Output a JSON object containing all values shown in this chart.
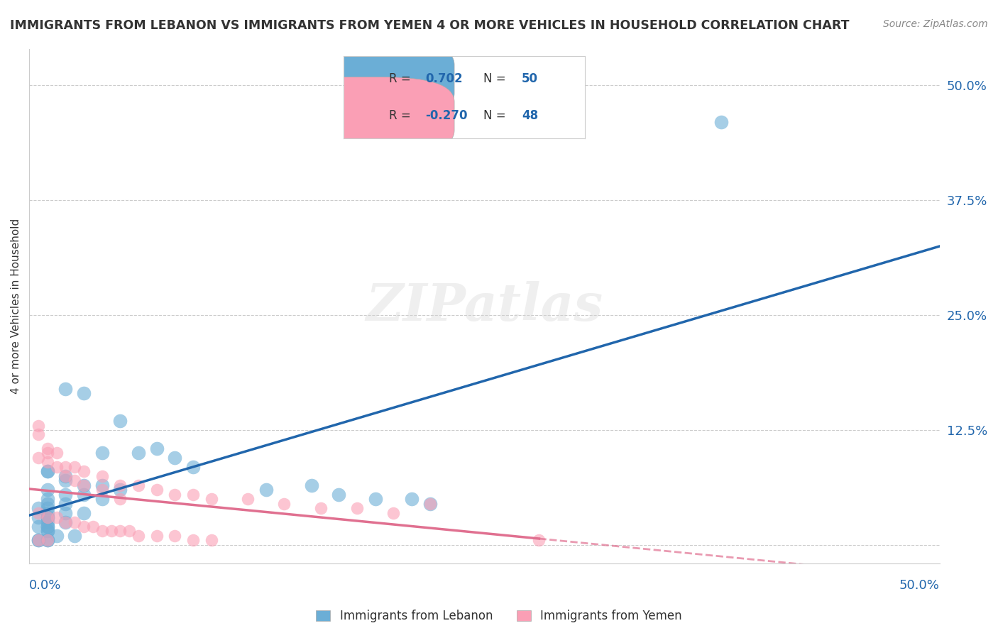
{
  "title": "IMMIGRANTS FROM LEBANON VS IMMIGRANTS FROM YEMEN 4 OR MORE VEHICLES IN HOUSEHOLD CORRELATION CHART",
  "source": "Source: ZipAtlas.com",
  "ylabel": "4 or more Vehicles in Household",
  "y_ticks": [
    0.0,
    0.125,
    0.25,
    0.375,
    0.5
  ],
  "y_tick_labels": [
    "",
    "12.5%",
    "25.0%",
    "37.5%",
    "50.0%"
  ],
  "xlim": [
    0.0,
    0.5
  ],
  "ylim": [
    -0.02,
    0.54
  ],
  "legend_blue_R": "0.702",
  "legend_blue_N": "50",
  "legend_pink_R": "-0.270",
  "legend_pink_N": "48",
  "blue_color": "#6baed6",
  "pink_color": "#fa9fb5",
  "blue_line_color": "#2166ac",
  "pink_line_color": "#e07090",
  "watermark": "ZIPatlas",
  "blue_scatter_x": [
    0.02,
    0.03,
    0.04,
    0.05,
    0.06,
    0.07,
    0.08,
    0.09,
    0.01,
    0.01,
    0.02,
    0.02,
    0.03,
    0.04,
    0.05,
    0.01,
    0.02,
    0.03,
    0.04,
    0.01,
    0.02,
    0.01,
    0.01,
    0.005,
    0.01,
    0.02,
    0.03,
    0.01,
    0.005,
    0.01,
    0.02,
    0.01,
    0.01,
    0.005,
    0.01,
    0.155,
    0.13,
    0.17,
    0.19,
    0.21,
    0.22,
    0.01,
    0.01,
    0.015,
    0.025,
    0.005,
    0.01,
    0.005,
    0.38,
    0.01
  ],
  "blue_scatter_y": [
    0.17,
    0.165,
    0.1,
    0.135,
    0.1,
    0.105,
    0.095,
    0.085,
    0.08,
    0.08,
    0.075,
    0.07,
    0.065,
    0.065,
    0.06,
    0.06,
    0.055,
    0.055,
    0.05,
    0.05,
    0.045,
    0.045,
    0.04,
    0.04,
    0.035,
    0.035,
    0.035,
    0.03,
    0.03,
    0.03,
    0.025,
    0.025,
    0.02,
    0.02,
    0.02,
    0.065,
    0.06,
    0.055,
    0.05,
    0.05,
    0.045,
    0.015,
    0.015,
    0.01,
    0.01,
    0.005,
    0.005,
    0.005,
    0.46,
    0.005
  ],
  "pink_scatter_x": [
    0.005,
    0.01,
    0.015,
    0.02,
    0.025,
    0.03,
    0.04,
    0.05,
    0.06,
    0.07,
    0.08,
    0.09,
    0.1,
    0.12,
    0.14,
    0.16,
    0.18,
    0.2,
    0.22,
    0.005,
    0.01,
    0.015,
    0.02,
    0.025,
    0.03,
    0.035,
    0.04,
    0.045,
    0.05,
    0.055,
    0.06,
    0.07,
    0.08,
    0.09,
    0.1,
    0.005,
    0.01,
    0.005,
    0.01,
    0.015,
    0.02,
    0.025,
    0.03,
    0.04,
    0.05,
    0.005,
    0.01,
    0.28
  ],
  "pink_scatter_y": [
    0.13,
    0.105,
    0.1,
    0.085,
    0.085,
    0.08,
    0.075,
    0.065,
    0.065,
    0.06,
    0.055,
    0.055,
    0.05,
    0.05,
    0.045,
    0.04,
    0.04,
    0.035,
    0.045,
    0.035,
    0.03,
    0.03,
    0.025,
    0.025,
    0.02,
    0.02,
    0.015,
    0.015,
    0.015,
    0.015,
    0.01,
    0.01,
    0.01,
    0.005,
    0.005,
    0.12,
    0.1,
    0.095,
    0.09,
    0.085,
    0.075,
    0.07,
    0.065,
    0.06,
    0.05,
    0.005,
    0.005,
    0.005
  ],
  "background_color": "#ffffff",
  "grid_color": "#cccccc"
}
